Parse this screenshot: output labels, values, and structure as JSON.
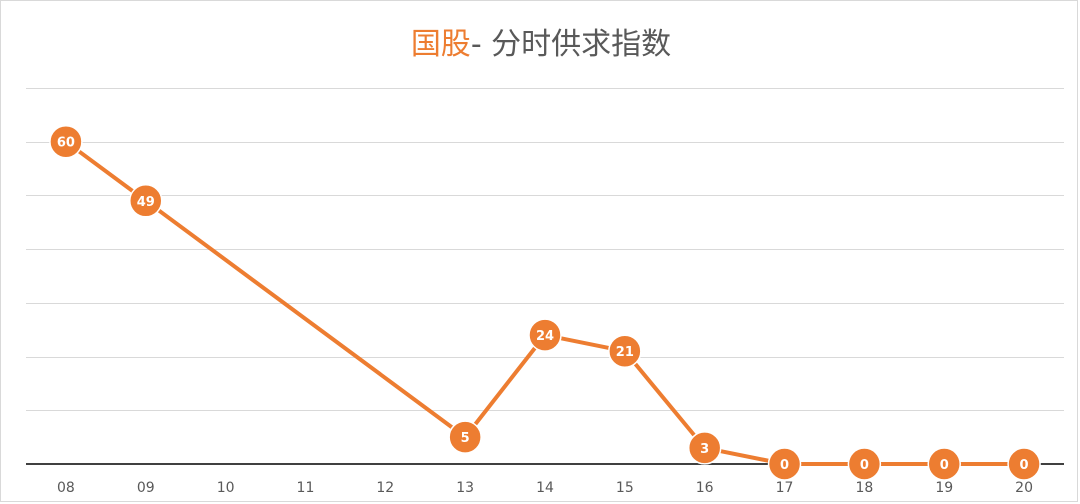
{
  "chart_data": {
    "type": "line",
    "title_accent": "国股",
    "title_rest": "- 分时供求指数",
    "xlabel": "",
    "ylabel": "",
    "categories": [
      "08",
      "09",
      "10",
      "11",
      "12",
      "13",
      "14",
      "15",
      "16",
      "17",
      "18",
      "19",
      "20"
    ],
    "x": [
      "08",
      "09",
      "13",
      "14",
      "15",
      "16",
      "17",
      "18",
      "19",
      "20"
    ],
    "values": [
      60,
      49,
      5,
      24,
      21,
      3,
      0,
      0,
      0,
      0
    ],
    "ylim": [
      0,
      70
    ],
    "grid": true,
    "gridline_step": 10,
    "show_y_tick_labels": false,
    "legend": "none",
    "line_color": "#ed7d31",
    "marker_color": "#ed7d31",
    "label_color": "#ffffff",
    "gridline_color": "#d9d9d9",
    "axis_color": "#404040",
    "text_color": "#595959"
  }
}
